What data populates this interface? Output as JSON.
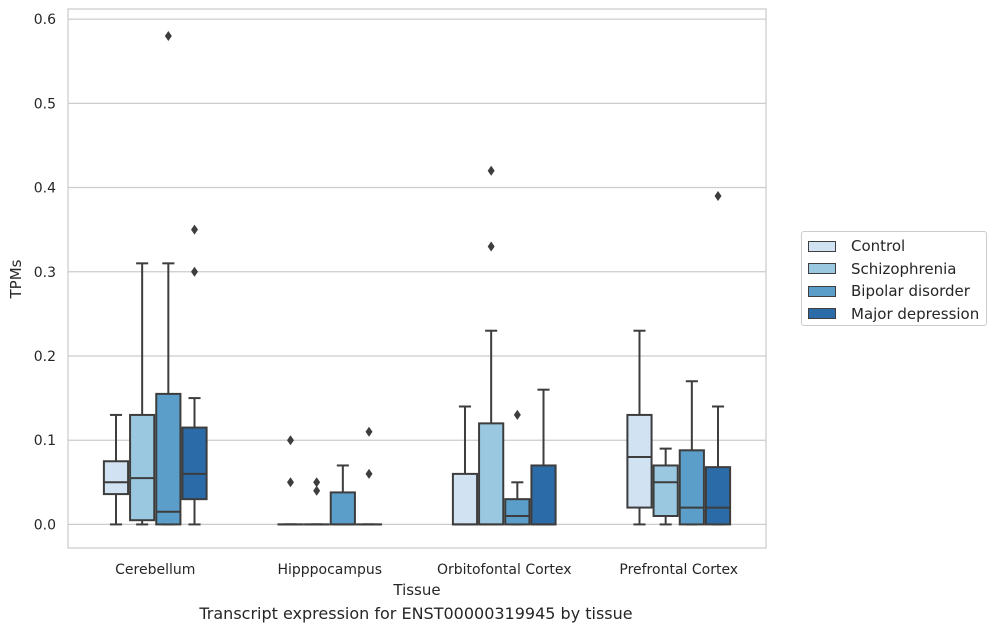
{
  "caption": "Transcript expression for ENST00000319945 by tissue",
  "chart_data": {
    "type": "box",
    "xlabel": "Tissue",
    "ylabel": "TPMs",
    "ylim": [
      -0.028,
      0.612
    ],
    "yticks": [
      "0.0",
      "0.1",
      "0.2",
      "0.3",
      "0.4",
      "0.5",
      "0.6"
    ],
    "grid": "horizontal",
    "legend_position": "right",
    "categories": [
      "Cerebellum",
      "Hipppocampus",
      "Orbitofontal Cortex",
      "Prefrontal Cortex"
    ],
    "series": [
      {
        "name": "Control",
        "color": "#d1e2f2",
        "boxes": [
          {
            "whisker_low": 0.0,
            "q1": 0.036,
            "median": 0.05,
            "q3": 0.075,
            "whisker_high": 0.13,
            "outliers": []
          },
          {
            "whisker_low": 0.0,
            "q1": 0.0,
            "median": 0.0,
            "q3": 0.0,
            "whisker_high": 0.0,
            "outliers": [
              0.1,
              0.05
            ]
          },
          {
            "whisker_low": 0.0,
            "q1": 0.0,
            "median": 0.0,
            "q3": 0.06,
            "whisker_high": 0.14,
            "outliers": []
          },
          {
            "whisker_low": 0.0,
            "q1": 0.02,
            "median": 0.08,
            "q3": 0.13,
            "whisker_high": 0.23,
            "outliers": []
          }
        ]
      },
      {
        "name": "Schizophrenia",
        "color": "#9ac8e0",
        "boxes": [
          {
            "whisker_low": 0.0,
            "q1": 0.005,
            "median": 0.055,
            "q3": 0.13,
            "whisker_high": 0.31,
            "outliers": []
          },
          {
            "whisker_low": 0.0,
            "q1": 0.0,
            "median": 0.0,
            "q3": 0.0,
            "whisker_high": 0.0,
            "outliers": [
              0.05,
              0.04
            ]
          },
          {
            "whisker_low": 0.0,
            "q1": 0.0,
            "median": 0.0,
            "q3": 0.12,
            "whisker_high": 0.23,
            "outliers": [
              0.42,
              0.33
            ]
          },
          {
            "whisker_low": 0.0,
            "q1": 0.01,
            "median": 0.05,
            "q3": 0.07,
            "whisker_high": 0.09,
            "outliers": []
          }
        ]
      },
      {
        "name": "Bipolar disorder",
        "color": "#5a9ec9",
        "boxes": [
          {
            "whisker_low": 0.0,
            "q1": 0.0,
            "median": 0.015,
            "q3": 0.155,
            "whisker_high": 0.31,
            "outliers": [
              0.58
            ]
          },
          {
            "whisker_low": 0.0,
            "q1": 0.0,
            "median": 0.0,
            "q3": 0.038,
            "whisker_high": 0.07,
            "outliers": []
          },
          {
            "whisker_low": 0.0,
            "q1": 0.0,
            "median": 0.01,
            "q3": 0.03,
            "whisker_high": 0.05,
            "outliers": [
              0.13
            ]
          },
          {
            "whisker_low": 0.0,
            "q1": 0.0,
            "median": 0.02,
            "q3": 0.088,
            "whisker_high": 0.17,
            "outliers": []
          }
        ]
      },
      {
        "name": "Major depression",
        "color": "#2b6ba8",
        "boxes": [
          {
            "whisker_low": 0.0,
            "q1": 0.03,
            "median": 0.06,
            "q3": 0.115,
            "whisker_high": 0.15,
            "outliers": [
              0.35,
              0.3
            ]
          },
          {
            "whisker_low": 0.0,
            "q1": 0.0,
            "median": 0.0,
            "q3": 0.0,
            "whisker_high": 0.0,
            "outliers": [
              0.11,
              0.06
            ]
          },
          {
            "whisker_low": 0.0,
            "q1": 0.0,
            "median": 0.0,
            "q3": 0.07,
            "whisker_high": 0.16,
            "outliers": []
          },
          {
            "whisker_low": 0.0,
            "q1": 0.0,
            "median": 0.02,
            "q3": 0.068,
            "whisker_high": 0.14,
            "outliers": [
              0.39
            ]
          }
        ]
      }
    ]
  }
}
